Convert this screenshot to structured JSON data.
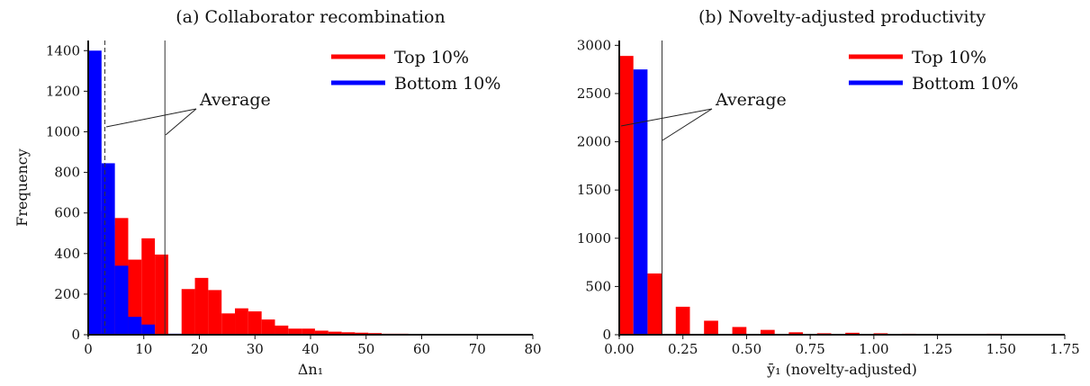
{
  "chart_data": [
    {
      "type": "bar",
      "title": "(a) Collaborator recombination",
      "xlabel": "Δn₁",
      "ylabel": "Frequency",
      "xlim": [
        0,
        80
      ],
      "ylim": [
        0,
        1450
      ],
      "xticks": [
        0,
        10,
        20,
        30,
        40,
        50,
        60,
        70,
        80
      ],
      "yticks": [
        0,
        200,
        400,
        600,
        800,
        1000,
        1200,
        1400
      ],
      "xtick_labels": [
        "0",
        "10",
        "20",
        "30",
        "40",
        "50",
        "60",
        "70",
        "80"
      ],
      "ytick_labels": [
        "0",
        "200",
        "400",
        "600",
        "800",
        "1000",
        "1200",
        "1400"
      ],
      "grid": false,
      "legend_position": "top-right",
      "bin_width": 2.4,
      "series": [
        {
          "name": "Top 10%",
          "color": "#ff0000",
          "bin_starts": [
            0,
            2.4,
            4.8,
            7.2,
            9.6,
            12,
            14.4,
            16.8,
            19.2,
            21.6,
            24,
            26.4,
            28.8,
            31.2,
            33.6,
            36,
            38.4,
            40.8,
            43.2,
            45.6,
            48,
            50.4,
            52.8,
            55.2,
            57.6,
            60,
            62.4,
            64.8,
            67.2,
            69.6
          ],
          "values": [
            610,
            540,
            575,
            370,
            475,
            395,
            0,
            225,
            280,
            220,
            105,
            130,
            115,
            75,
            45,
            30,
            30,
            20,
            15,
            12,
            10,
            8,
            5,
            5,
            3,
            3,
            2,
            2,
            2,
            2
          ]
        },
        {
          "name": "Bottom 10%",
          "color": "#0000ff",
          "bin_starts": [
            0,
            2.4,
            4.8,
            7.2,
            9.6,
            12,
            14.4
          ],
          "values": [
            1400,
            845,
            340,
            88,
            50,
            0,
            5
          ]
        }
      ],
      "average_lines": [
        {
          "series": "Bottom 10%",
          "x": 3.0,
          "style": "dashed"
        },
        {
          "series": "Top 10%",
          "x": 13.8,
          "style": "solid"
        }
      ],
      "annotation": "Average"
    },
    {
      "type": "bar",
      "title": "(b) Novelty-adjusted productivity",
      "xlabel": "ȳ₁ (novelty-adjusted)",
      "ylabel": "",
      "xlim": [
        0,
        1.75
      ],
      "ylim": [
        0,
        3050
      ],
      "xticks": [
        0,
        0.25,
        0.5,
        0.75,
        1.0,
        1.25,
        1.5,
        1.75
      ],
      "yticks": [
        0,
        500,
        1000,
        1500,
        2000,
        2500,
        3000
      ],
      "xtick_labels": [
        "0.00",
        "0.25",
        "0.50",
        "0.75",
        "1.00",
        "1.25",
        "1.50",
        "1.75"
      ],
      "ytick_labels": [
        "0",
        "500",
        "1000",
        "1500",
        "2000",
        "2500",
        "3000"
      ],
      "grid": false,
      "legend_position": "top-right",
      "bin_width": 0.0555,
      "series": [
        {
          "name": "Top 10%",
          "color": "#ff0000",
          "bin_starts": [
            0.0,
            0.111,
            0.222,
            0.333,
            0.444,
            0.555,
            0.666,
            0.777,
            0.888,
            0.999,
            1.11,
            1.221,
            1.332,
            1.443
          ],
          "values": [
            2890,
            635,
            290,
            145,
            80,
            50,
            25,
            15,
            20,
            15,
            10,
            8,
            5,
            10
          ]
        },
        {
          "name": "Bottom 10%",
          "color": "#0000ff",
          "bin_starts": [
            0.0555
          ],
          "values": [
            2750
          ]
        }
      ],
      "average_lines": [
        {
          "series": "Bottom 10%",
          "x": 0.0,
          "style": "dashed"
        },
        {
          "series": "Top 10%",
          "x": 0.168,
          "style": "solid"
        }
      ],
      "annotation": "Average"
    }
  ]
}
